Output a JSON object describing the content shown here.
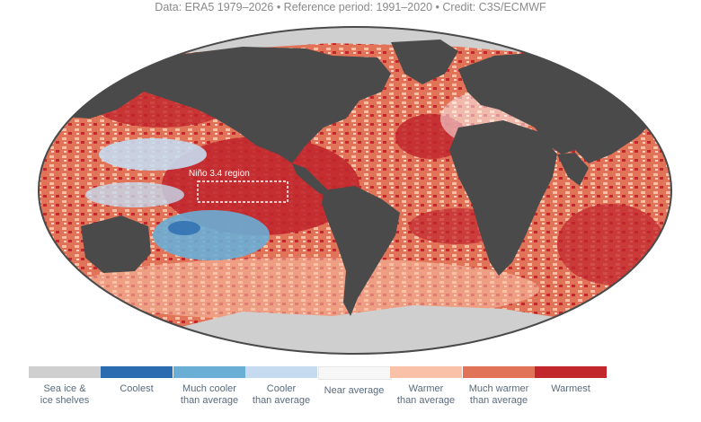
{
  "credit": "Data: ERA5 1979–2026 • Reference period: 1991–2020 • Credit: C3S/ECMWF",
  "map": {
    "region_label": "Niño 3.4 region",
    "colors": {
      "land": "#4a4a4a",
      "sea_ice": "#cfcfcf",
      "coolest": "#2b6cb0",
      "much_cooler": "#6aaed6",
      "cooler": "#c6dbef",
      "near_average": "#ffffff",
      "warmer": "#f8c1a8",
      "much_warmer": "#e07358",
      "warmest": "#c1272d"
    }
  },
  "legend": {
    "items": [
      {
        "label": "Sea ice &\nice shelves",
        "color": "#cfcfcf"
      },
      {
        "label": "Coolest",
        "color": "#2b6cb0"
      },
      {
        "label": "Much cooler\nthan average",
        "color": "#6aaed6"
      },
      {
        "label": "Cooler\nthan average",
        "color": "#c6dbef"
      },
      {
        "label": "Near average",
        "color": "#f7f7f7"
      },
      {
        "label": "Warmer\nthan average",
        "color": "#f8c1a8"
      },
      {
        "label": "Much warmer\nthan average",
        "color": "#e07358"
      },
      {
        "label": "Warmest",
        "color": "#c1272d"
      }
    ]
  }
}
